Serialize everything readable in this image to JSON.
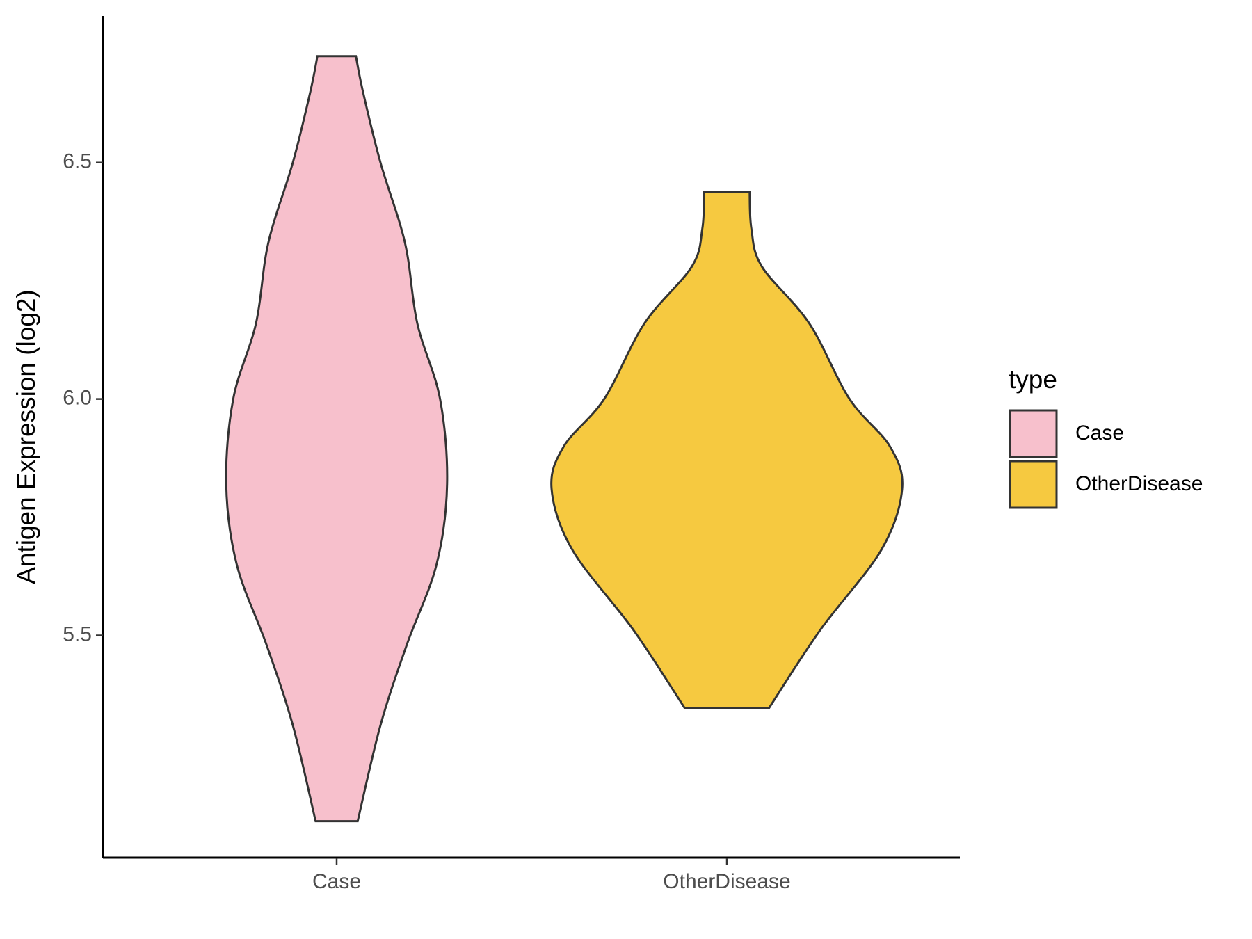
{
  "chart_data": {
    "type": "violin",
    "ylabel": "Antigen Expression (log2)",
    "categories": [
      "Case",
      "OtherDisease"
    ],
    "legend_title": "type",
    "legend_position": "right",
    "ylim": [
      5.03,
      6.81
    ],
    "yticks": [
      5.5,
      {
        "value": 6,
        "label": "6.0"
      },
      6.5
    ],
    "series": [
      {
        "name": "Case",
        "color": "#f7c0cc",
        "y": [
          6.725,
          6.65,
          6.5,
          6.33,
          6.16,
          6.0,
          5.82,
          5.65,
          5.48,
          5.31,
          5.107
        ],
        "width": [
          0.11,
          0.15,
          0.25,
          0.39,
          0.46,
          0.59,
          0.63,
          0.57,
          0.4,
          0.25,
          0.12
        ]
      },
      {
        "name": "OtherDisease",
        "color": "#f6c940",
        "y": [
          6.437,
          6.36,
          6.28,
          6.16,
          6.0,
          5.9,
          5.81,
          5.68,
          5.51,
          5.346
        ],
        "width": [
          0.13,
          0.14,
          0.2,
          0.47,
          0.7,
          0.93,
          1.0,
          0.88,
          0.53,
          0.24
        ]
      }
    ]
  }
}
